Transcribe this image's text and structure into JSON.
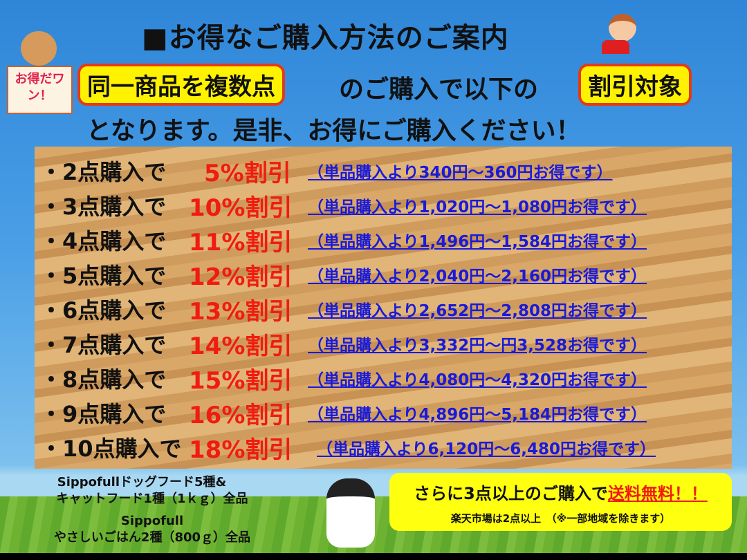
{
  "title": "■お得なご購入方法のご案内",
  "badge": "お得だワン！",
  "highlight1": "同一商品を複数点",
  "line1": "のご購入で以下の",
  "highlight2": "割引対象",
  "line2": "となります。是非、お得にご購入ください！",
  "rows": [
    {
      "label": "・2点購入で",
      "discount": "5%割引",
      "note": "（単品購入より340円〜360円お得です）"
    },
    {
      "label": "・3点購入で",
      "discount": "10%割引",
      "note": "（単品購入より1,020円〜1,080円お得です）"
    },
    {
      "label": "・4点購入で",
      "discount": "11%割引",
      "note": "（単品購入より1,496円〜1,584円お得です）"
    },
    {
      "label": "・5点購入で",
      "discount": "12%割引",
      "note": "（単品購入より2,040円〜2,160円お得です）"
    },
    {
      "label": "・6点購入で",
      "discount": "13%割引",
      "note": "（単品購入より2,652円〜2,808円お得です）"
    },
    {
      "label": "・7点購入で",
      "discount": "14%割引",
      "note": "（単品購入より3,332円〜円3,528お得です）"
    },
    {
      "label": "・8点購入で",
      "discount": "15%割引",
      "note": "（単品購入より4,080円〜4,320円お得です）"
    },
    {
      "label": "・9点購入で",
      "discount": "16%割引",
      "note": "（単品購入より4,896円〜5,184円お得です）"
    },
    {
      "label": "・10点購入で",
      "discount": "18%割引",
      "note": "（単品購入より6,120円〜6,480円お得です）"
    }
  ],
  "footer_left": {
    "line1": "Sippofullドッグフード5種&",
    "line2": "キャットフード1種（1ｋｇ）全品",
    "line3": "Sippofull",
    "line4": "やさしいごはん2種（800ｇ）全品"
  },
  "promo": {
    "main": "さらに3点以上のご購入で",
    "free_shipping": "送料無料！！",
    "sub": "楽天市場は2点以上　（※一部地域を除きます）"
  },
  "colors": {
    "discount": "#f01c10",
    "note": "#1a1ad8",
    "highlight": "#fff200"
  }
}
